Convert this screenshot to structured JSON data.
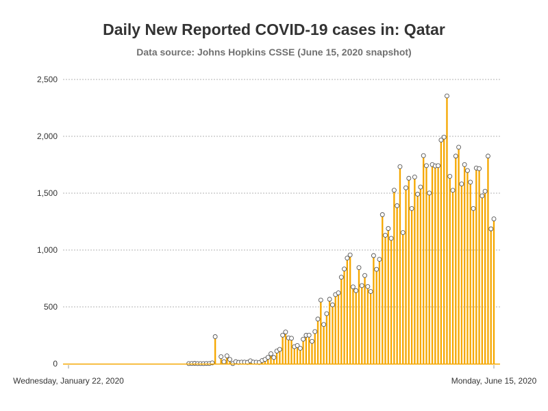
{
  "chart_data": {
    "type": "bar",
    "title": "Daily New Reported COVID-19 cases in: Qatar",
    "subtitle": "Data source: Johns Hopkins CSSE (June 15, 2020 snapshot)",
    "xlabel": "",
    "ylabel": "",
    "x_start_label": "Wednesday, January 22, 2020",
    "x_end_label": "Monday, June 15, 2020",
    "ylim": [
      0,
      2500
    ],
    "yticks": [
      {
        "value": 0,
        "label": "0"
      },
      {
        "value": 500,
        "label": "500"
      },
      {
        "value": 1000,
        "label": "1,000"
      },
      {
        "value": 1500,
        "label": "1,500"
      },
      {
        "value": 2000,
        "label": "2,000"
      },
      {
        "value": 2500,
        "label": "2,500"
      }
    ],
    "grid": true,
    "colors": {
      "bar": "#f5a700",
      "marker_fill": "#ffffff",
      "marker_stroke": "#555555",
      "grid": "#b0b0b0",
      "axis": "#cccccc"
    },
    "values": [
      0,
      0,
      0,
      0,
      0,
      0,
      0,
      0,
      0,
      0,
      0,
      0,
      0,
      0,
      0,
      0,
      0,
      0,
      0,
      0,
      0,
      0,
      0,
      0,
      0,
      0,
      0,
      0,
      0,
      0,
      0,
      0,
      0,
      0,
      0,
      0,
      0,
      0,
      0,
      0,
      0,
      1,
      2,
      3,
      1,
      1,
      1,
      2,
      2,
      7,
      238,
      0,
      62,
      18,
      69,
      38,
      1,
      18,
      12,
      14,
      14,
      12,
      25,
      14,
      13,
      11,
      28,
      38,
      56,
      88,
      55,
      111,
      126,
      251,
      279,
      227,
      224,
      150,
      160,
      136,
      216,
      250,
      251,
      197,
      283,
      393,
      560,
      345,
      440,
      567,
      518,
      608,
      623,
      761,
      833,
      929,
      957,
      676,
      643,
      845,
      687,
      776,
      679,
      635,
      951,
      830,
      918,
      1311,
      1130,
      1189,
      1103,
      1526,
      1390,
      1733,
      1153,
      1547,
      1631,
      1365,
      1642,
      1491,
      1554,
      1830,
      1742,
      1501,
      1751,
      1740,
      1742,
      1967,
      1993,
      2355,
      1648,
      1525,
      1826,
      1904,
      1581,
      1751,
      1699,
      1597,
      1365,
      1721,
      1716,
      1476,
      1517,
      1826,
      1186,
      1274
    ]
  }
}
